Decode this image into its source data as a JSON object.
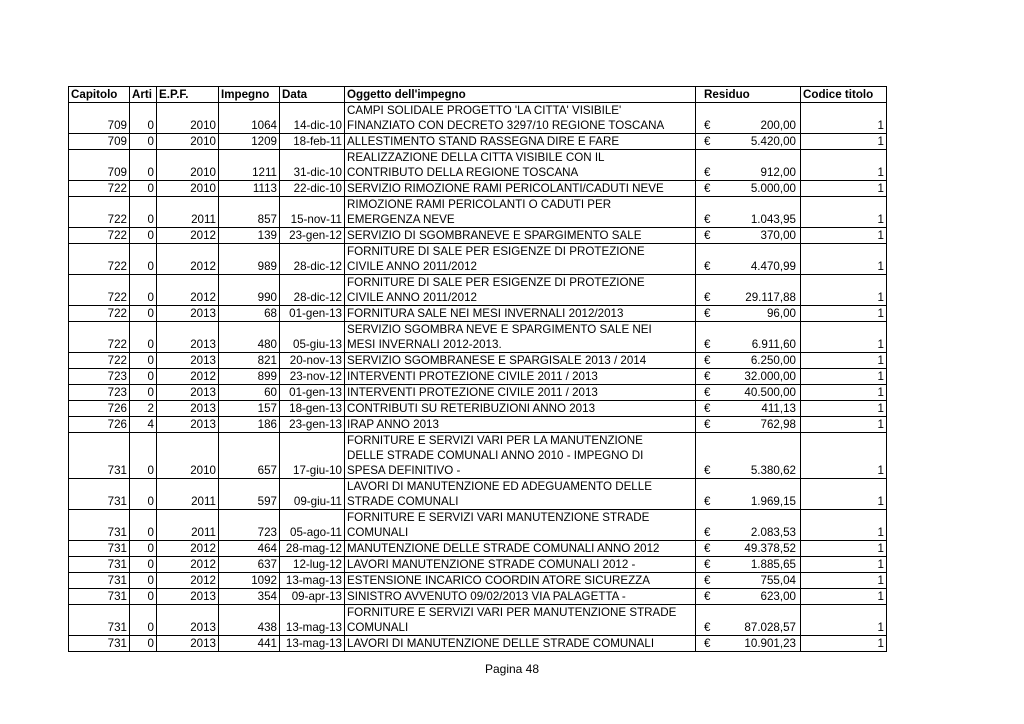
{
  "headers": [
    "Capitolo",
    "Arti",
    "E.P.F.",
    "Impegno",
    "Data",
    "Oggetto dell'impegno",
    "Residuo",
    "Codice titolo"
  ],
  "currency_symbol": "€",
  "rows": [
    {
      "capitolo": "709",
      "articolo": "0",
      "epf": "2010",
      "impegno": "1064",
      "data": "14-dic-10",
      "oggetto": [
        "CAMPI SOLIDALE  PROGETTO 'LA CITTA' VISIBILE'",
        "FINANZIATO CON DECRETO 3297/10 REGIONE TOSCANA"
      ],
      "residuo": "200,00",
      "codice": "1"
    },
    {
      "capitolo": "709",
      "articolo": "0",
      "epf": "2010",
      "impegno": "1209",
      "data": "18-feb-11",
      "oggetto": [
        "ALLESTIMENTO STAND RASSEGNA DIRE E FARE"
      ],
      "residuo": "5.420,00",
      "codice": "1"
    },
    {
      "capitolo": "709",
      "articolo": "0",
      "epf": "2010",
      "impegno": "1211",
      "data": "31-dic-10",
      "oggetto": [
        "REALIZZAZIONE DELLA CITTA VISIBILE CON IL",
        "CONTRIBUTO DELLA REGIONE TOSCANA"
      ],
      "residuo": "912,00",
      "codice": "1"
    },
    {
      "capitolo": "722",
      "articolo": "0",
      "epf": "2010",
      "impegno": "1113",
      "data": "22-dic-10",
      "oggetto": [
        "SERVIZIO RIMOZIONE RAMI PERICOLANTI/CADUTI NEVE"
      ],
      "residuo": "5.000,00",
      "codice": "1"
    },
    {
      "capitolo": "722",
      "articolo": "0",
      "epf": "2011",
      "impegno": "857",
      "data": "15-nov-11",
      "oggetto": [
        "RIMOZIONE RAMI PERICOLANTI O CADUTI PER",
        "EMERGENZA NEVE"
      ],
      "residuo": "1.043,95",
      "codice": "1"
    },
    {
      "capitolo": "722",
      "articolo": "0",
      "epf": "2012",
      "impegno": "139",
      "data": "23-gen-12",
      "oggetto": [
        "SERVIZIO DI SGOMBRANEVE E SPARGIMENTO SALE"
      ],
      "residuo": "370,00",
      "codice": "1"
    },
    {
      "capitolo": "722",
      "articolo": "0",
      "epf": "2012",
      "impegno": "989",
      "data": "28-dic-12",
      "oggetto": [
        "FORNITURE DI SALE PER ESIGENZE DI PROTEZIONE",
        "CIVILE ANNO 2011/2012"
      ],
      "residuo": "4.470,99",
      "codice": "1"
    },
    {
      "capitolo": "722",
      "articolo": "0",
      "epf": "2012",
      "impegno": "990",
      "data": "28-dic-12",
      "oggetto": [
        "FORNITURE DI SALE PER ESIGENZE DI PROTEZIONE",
        "CIVILE ANNO 2011/2012"
      ],
      "residuo": "29.117,88",
      "codice": "1"
    },
    {
      "capitolo": "722",
      "articolo": "0",
      "epf": "2013",
      "impegno": "68",
      "data": "01-gen-13",
      "oggetto": [
        "FORNITURA SALE NEI MESI INVERNALI 2012/2013"
      ],
      "residuo": "96,00",
      "codice": "1"
    },
    {
      "capitolo": "722",
      "articolo": "0",
      "epf": "2013",
      "impegno": "480",
      "data": "05-giu-13",
      "oggetto": [
        "SERVIZIO SGOMBRA NEVE E SPARGIMENTO SALE NEI",
        "MESI INVERNALI 2012-2013."
      ],
      "residuo": "6.911,60",
      "codice": "1"
    },
    {
      "capitolo": "722",
      "articolo": "0",
      "epf": "2013",
      "impegno": "821",
      "data": "20-nov-13",
      "oggetto": [
        "SERVIZIO SGOMBRANESE E SPARGISALE 2013 / 2014"
      ],
      "residuo": "6.250,00",
      "codice": "1"
    },
    {
      "capitolo": "723",
      "articolo": "0",
      "epf": "2012",
      "impegno": "899",
      "data": "23-nov-12",
      "oggetto": [
        "INTERVENTI PROTEZIONE CIVILE 2011 / 2013"
      ],
      "residuo": "32.000,00",
      "codice": "1"
    },
    {
      "capitolo": "723",
      "articolo": "0",
      "epf": "2013",
      "impegno": "60",
      "data": "01-gen-13",
      "oggetto": [
        "INTERVENTI PROTEZIONE CIVILE 2011 / 2013"
      ],
      "residuo": "40.500,00",
      "codice": "1"
    },
    {
      "capitolo": "726",
      "articolo": "2",
      "epf": "2013",
      "impegno": "157",
      "data": "18-gen-13",
      "oggetto": [
        "CONTRIBUTI SU RETERIBUZIONI ANNO 2013"
      ],
      "residuo": "411,13",
      "codice": "1"
    },
    {
      "capitolo": "726",
      "articolo": "4",
      "epf": "2013",
      "impegno": "186",
      "data": "23-gen-13",
      "oggetto": [
        "IRAP ANNO 2013"
      ],
      "residuo": "762,98",
      "codice": "1"
    },
    {
      "capitolo": "731",
      "articolo": "0",
      "epf": "2010",
      "impegno": "657",
      "data": "17-giu-10",
      "oggetto": [
        "FORNITURE E SERVIZI VARI PER LA MANUTENZIONE",
        "DELLE STRADE COMUNALI ANNO 2010 - IMPEGNO DI",
        "SPESA DEFINITIVO -"
      ],
      "residuo": "5.380,62",
      "codice": "1"
    },
    {
      "capitolo": "731",
      "articolo": "0",
      "epf": "2011",
      "impegno": "597",
      "data": "09-giu-11",
      "oggetto": [
        "LAVORI DI MANUTENZIONE ED ADEGUAMENTO DELLE",
        "STRADE COMUNALI"
      ],
      "residuo": "1.969,15",
      "codice": "1"
    },
    {
      "capitolo": "731",
      "articolo": "0",
      "epf": "2011",
      "impegno": "723",
      "data": "05-ago-11",
      "oggetto": [
        "FORNITURE E SERVIZI VARI MANUTENZIONE STRADE",
        "COMUNALI"
      ],
      "residuo": "2.083,53",
      "codice": "1"
    },
    {
      "capitolo": "731",
      "articolo": "0",
      "epf": "2012",
      "impegno": "464",
      "data": "28-mag-12",
      "oggetto": [
        "MANUTENZIONE DELLE STRADE COMUNALI ANNO 2012"
      ],
      "residuo": "49.378,52",
      "codice": "1"
    },
    {
      "capitolo": "731",
      "articolo": "0",
      "epf": "2012",
      "impegno": "637",
      "data": "12-lug-12",
      "oggetto": [
        "LAVORI MANUTENZIONE STRADE COMUNALI 2012 -"
      ],
      "residuo": "1.885,65",
      "codice": "1"
    },
    {
      "capitolo": "731",
      "articolo": "0",
      "epf": "2012",
      "impegno": "1092",
      "data": "13-mag-13",
      "oggetto": [
        "ESTENSIONE INCARICO COORDIN ATORE SICUREZZA"
      ],
      "residuo": "755,04",
      "codice": "1"
    },
    {
      "capitolo": "731",
      "articolo": "0",
      "epf": "2013",
      "impegno": "354",
      "data": "09-apr-13",
      "oggetto": [
        "SINISTRO AVVENUTO 09/02/2013 VIA PALAGETTA -"
      ],
      "residuo": "623,00",
      "codice": "1"
    },
    {
      "capitolo": "731",
      "articolo": "0",
      "epf": "2013",
      "impegno": "438",
      "data": "13-mag-13",
      "oggetto": [
        "FORNITURE E SERVIZI VARI PER MANUTENZIONE STRADE",
        "COMUNALI"
      ],
      "residuo": "87.028,57",
      "codice": "1"
    },
    {
      "capitolo": "731",
      "articolo": "0",
      "epf": "2013",
      "impegno": "441",
      "data": "13-mag-13",
      "oggetto": [
        "LAVORI DI MANUTENZIONE DELLE STRADE COMUNALI"
      ],
      "residuo": "10.901,23",
      "codice": "1"
    }
  ],
  "footer": {
    "page_label": "Pagina 48"
  }
}
